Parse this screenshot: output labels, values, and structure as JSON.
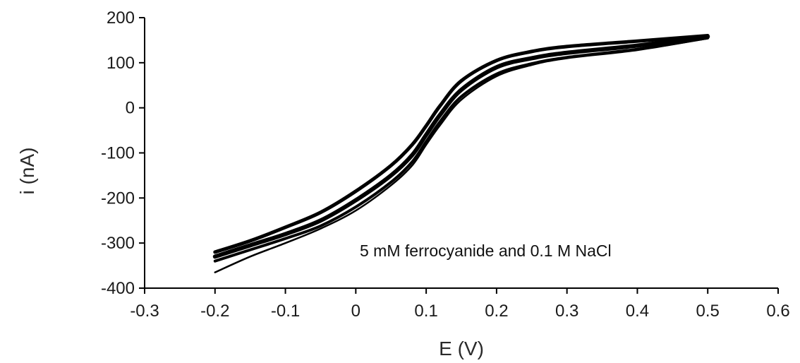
{
  "chart_data": {
    "type": "line",
    "title": "",
    "xlabel": "E (V)",
    "ylabel": "i (nA)",
    "xlim": [
      -0.3,
      0.6
    ],
    "ylim": [
      -400,
      200
    ],
    "xticks": [
      -0.3,
      -0.2,
      -0.1,
      0,
      0.1,
      0.2,
      0.3,
      0.4,
      0.5,
      0.6
    ],
    "xtick_labels": [
      "-0.3",
      "-0.2",
      "-0.1",
      "0",
      "0.1",
      "0.2",
      "0.3",
      "0.4",
      "0.5",
      "0.6"
    ],
    "yticks": [
      -400,
      -300,
      -200,
      -100,
      0,
      100,
      200
    ],
    "ytick_labels": [
      "-400",
      "-300",
      "-200",
      "-100",
      "0",
      "100",
      "200"
    ],
    "grid": false,
    "annotation": "5 mM ferrocyanide and 0.1 M NaCl",
    "line_color": "#000000",
    "series": [
      {
        "x": [
          -0.2,
          -0.15,
          -0.1,
          -0.05,
          0,
          0.05,
          0.08,
          0.1,
          0.12,
          0.15,
          0.2,
          0.25,
          0.3,
          0.4,
          0.5
        ],
        "y": [
          -330,
          -305,
          -280,
          -250,
          -205,
          -150,
          -105,
          -60,
          -15,
          40,
          90,
          110,
          122,
          138,
          158
        ]
      },
      {
        "x": [
          -0.2,
          -0.15,
          -0.1,
          -0.05,
          0,
          0.05,
          0.08,
          0.1,
          0.12,
          0.15,
          0.2,
          0.25,
          0.3,
          0.4,
          0.5
        ],
        "y": [
          -320,
          -295,
          -265,
          -232,
          -185,
          -128,
          -82,
          -40,
          5,
          60,
          105,
          125,
          136,
          148,
          160
        ]
      },
      {
        "x": [
          -0.2,
          -0.15,
          -0.1,
          -0.05,
          0,
          0.05,
          0.08,
          0.1,
          0.12,
          0.15,
          0.2,
          0.25,
          0.3,
          0.4,
          0.5
        ],
        "y": [
          -340,
          -315,
          -290,
          -262,
          -220,
          -165,
          -120,
          -75,
          -30,
          25,
          75,
          98,
          112,
          130,
          155
        ]
      },
      {
        "x": [
          -0.2,
          -0.15,
          -0.1,
          -0.05,
          0,
          0.05,
          0.08,
          0.1,
          0.12,
          0.15,
          0.2,
          0.25,
          0.3,
          0.4,
          0.5
        ],
        "y": [
          -365,
          -330,
          -300,
          -268,
          -228,
          -172,
          -128,
          -82,
          -38,
          18,
          70,
          95,
          110,
          128,
          154
        ]
      }
    ]
  }
}
